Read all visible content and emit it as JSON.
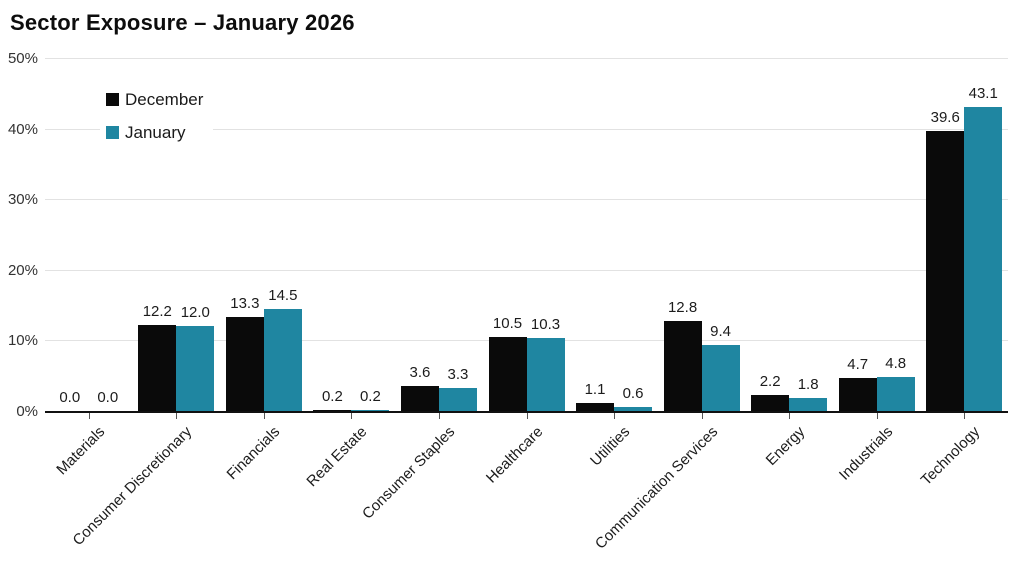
{
  "title": "Sector Exposure – January 2026",
  "chart_data": {
    "type": "bar",
    "title": "Sector Exposure – January 2026",
    "categories": [
      "Materials",
      "Consumer Discretionary",
      "Financials",
      "Real Estate",
      "Consumer Staples",
      "Healthcare",
      "Utilities",
      "Communication Services",
      "Energy",
      "Industrials",
      "Technology"
    ],
    "series": [
      {
        "name": "December",
        "color": "#0a0a0a",
        "values": [
          0.0,
          12.2,
          13.3,
          0.2,
          3.6,
          10.5,
          1.1,
          12.8,
          2.2,
          4.7,
          39.6
        ]
      },
      {
        "name": "January",
        "color": "#1f86a1",
        "values": [
          0.0,
          12.0,
          14.5,
          0.2,
          3.3,
          10.3,
          0.6,
          9.4,
          1.8,
          4.8,
          43.1
        ]
      }
    ],
    "xlabel": "",
    "ylabel": "",
    "ylim": [
      0,
      50
    ],
    "yticks": [
      0,
      10,
      20,
      30,
      40,
      50
    ],
    "ytick_labels": [
      "0%",
      "10%",
      "20%",
      "30%",
      "40%",
      "50%"
    ],
    "grid": true,
    "legend_position": "top-left",
    "value_labels_shown": true,
    "value_label_decimals": 1,
    "colors": {
      "gridline": "#e2e2e2",
      "axis": "#111111",
      "text": "#1c1c1c"
    }
  }
}
